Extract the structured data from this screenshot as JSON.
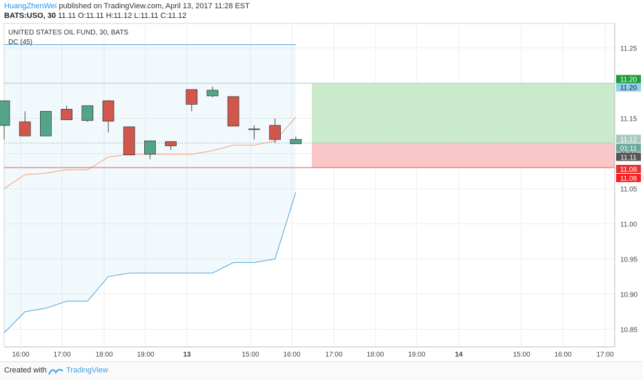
{
  "header": {
    "author": "HuangZhenWei",
    "published_text": "published on TradingView.com, April 13, 2017 11:28 EST",
    "symbol_line": "BATS:USO, 30",
    "o_label": "O:",
    "o_value": "11.11",
    "h_label": "H:",
    "h_value": "11.12",
    "l_label": "L:",
    "l_value": "11.11",
    "c_label": "C:",
    "c_value": "11.12",
    "last": "11.11"
  },
  "chart_data": {
    "type": "candlestick",
    "title": "UNITED STATES OIL FUND, 30, BATS",
    "indicator": "DC (45)",
    "ylim": [
      10.825,
      11.285
    ],
    "y_ticks": [
      "11.25",
      "11.20",
      "11.15",
      "11.10",
      "11.05",
      "11.00",
      "10.95",
      "10.90",
      "10.85"
    ],
    "x_ticks": [
      "16:00",
      "17:00",
      "18:00",
      "19:00",
      "13",
      "15:00",
      "16:00",
      "17:00",
      "18:00",
      "19:00",
      "14",
      "15:00",
      "16:00",
      "17:00"
    ],
    "candles": [
      {
        "o": 11.14,
        "h": 11.175,
        "l": 11.12,
        "c": 11.175
      },
      {
        "o": 11.145,
        "h": 11.16,
        "l": 11.125,
        "c": 11.125
      },
      {
        "o": 11.125,
        "h": 11.16,
        "l": 11.125,
        "c": 11.16
      },
      {
        "o": 11.163,
        "h": 11.168,
        "l": 11.148,
        "c": 11.148
      },
      {
        "o": 11.147,
        "h": 11.168,
        "l": 11.145,
        "c": 11.168
      },
      {
        "o": 11.175,
        "h": 11.176,
        "l": 11.13,
        "c": 11.146
      },
      {
        "o": 11.138,
        "h": 11.138,
        "l": 11.098,
        "c": 11.098
      },
      {
        "o": 11.099,
        "h": 11.118,
        "l": 11.092,
        "c": 11.118
      },
      {
        "o": 11.117,
        "h": 11.117,
        "l": 11.105,
        "c": 11.111
      },
      {
        "o": 11.191,
        "h": 11.191,
        "l": 11.16,
        "c": 11.17
      },
      {
        "o": 11.182,
        "h": 11.195,
        "l": 11.18,
        "c": 11.19
      },
      {
        "o": 11.181,
        "h": 11.181,
        "l": 11.139,
        "c": 11.139
      },
      {
        "o": 11.135,
        "h": 11.14,
        "l": 11.12,
        "c": 11.135
      },
      {
        "o": 11.14,
        "h": 11.15,
        "l": 11.115,
        "c": 11.12
      },
      {
        "o": 11.114,
        "h": 11.124,
        "l": 11.114,
        "c": 11.12
      }
    ],
    "dc_upper": [
      11.255,
      11.255,
      11.255,
      11.255,
      11.255,
      11.255,
      11.255,
      11.255,
      11.255,
      11.255,
      11.255,
      11.255,
      11.255,
      11.255,
      11.255
    ],
    "dc_lower": [
      10.845,
      10.875,
      10.88,
      10.89,
      10.89,
      10.925,
      10.93,
      10.93,
      10.93,
      10.93,
      10.93,
      10.945,
      10.945,
      10.95,
      11.045
    ],
    "dc_basis": [
      11.05,
      11.07,
      11.072,
      11.077,
      11.077,
      11.095,
      11.099,
      11.099,
      11.099,
      11.099,
      11.104,
      11.112,
      11.112,
      11.118,
      11.152
    ],
    "position": {
      "entry": 11.115,
      "target": 11.2,
      "stop": 11.08
    },
    "price_labels": {
      "target_green": "11.20",
      "target_blue": "11.20",
      "entry": "11.12",
      "timer": "01:11",
      "last": "11.11",
      "stop_a": "11.08",
      "stop_b": "11.08"
    },
    "colors": {
      "up": "#53a488",
      "down": "#d1574c",
      "dc_line": "#4aa3df",
      "dc_basis": "#f0a070",
      "profit": "#cbe9cb",
      "loss": "#f9c7c7",
      "stop_line": "#e55a50"
    }
  },
  "footer": {
    "created_with": "Created with",
    "brand": "TradingView"
  }
}
